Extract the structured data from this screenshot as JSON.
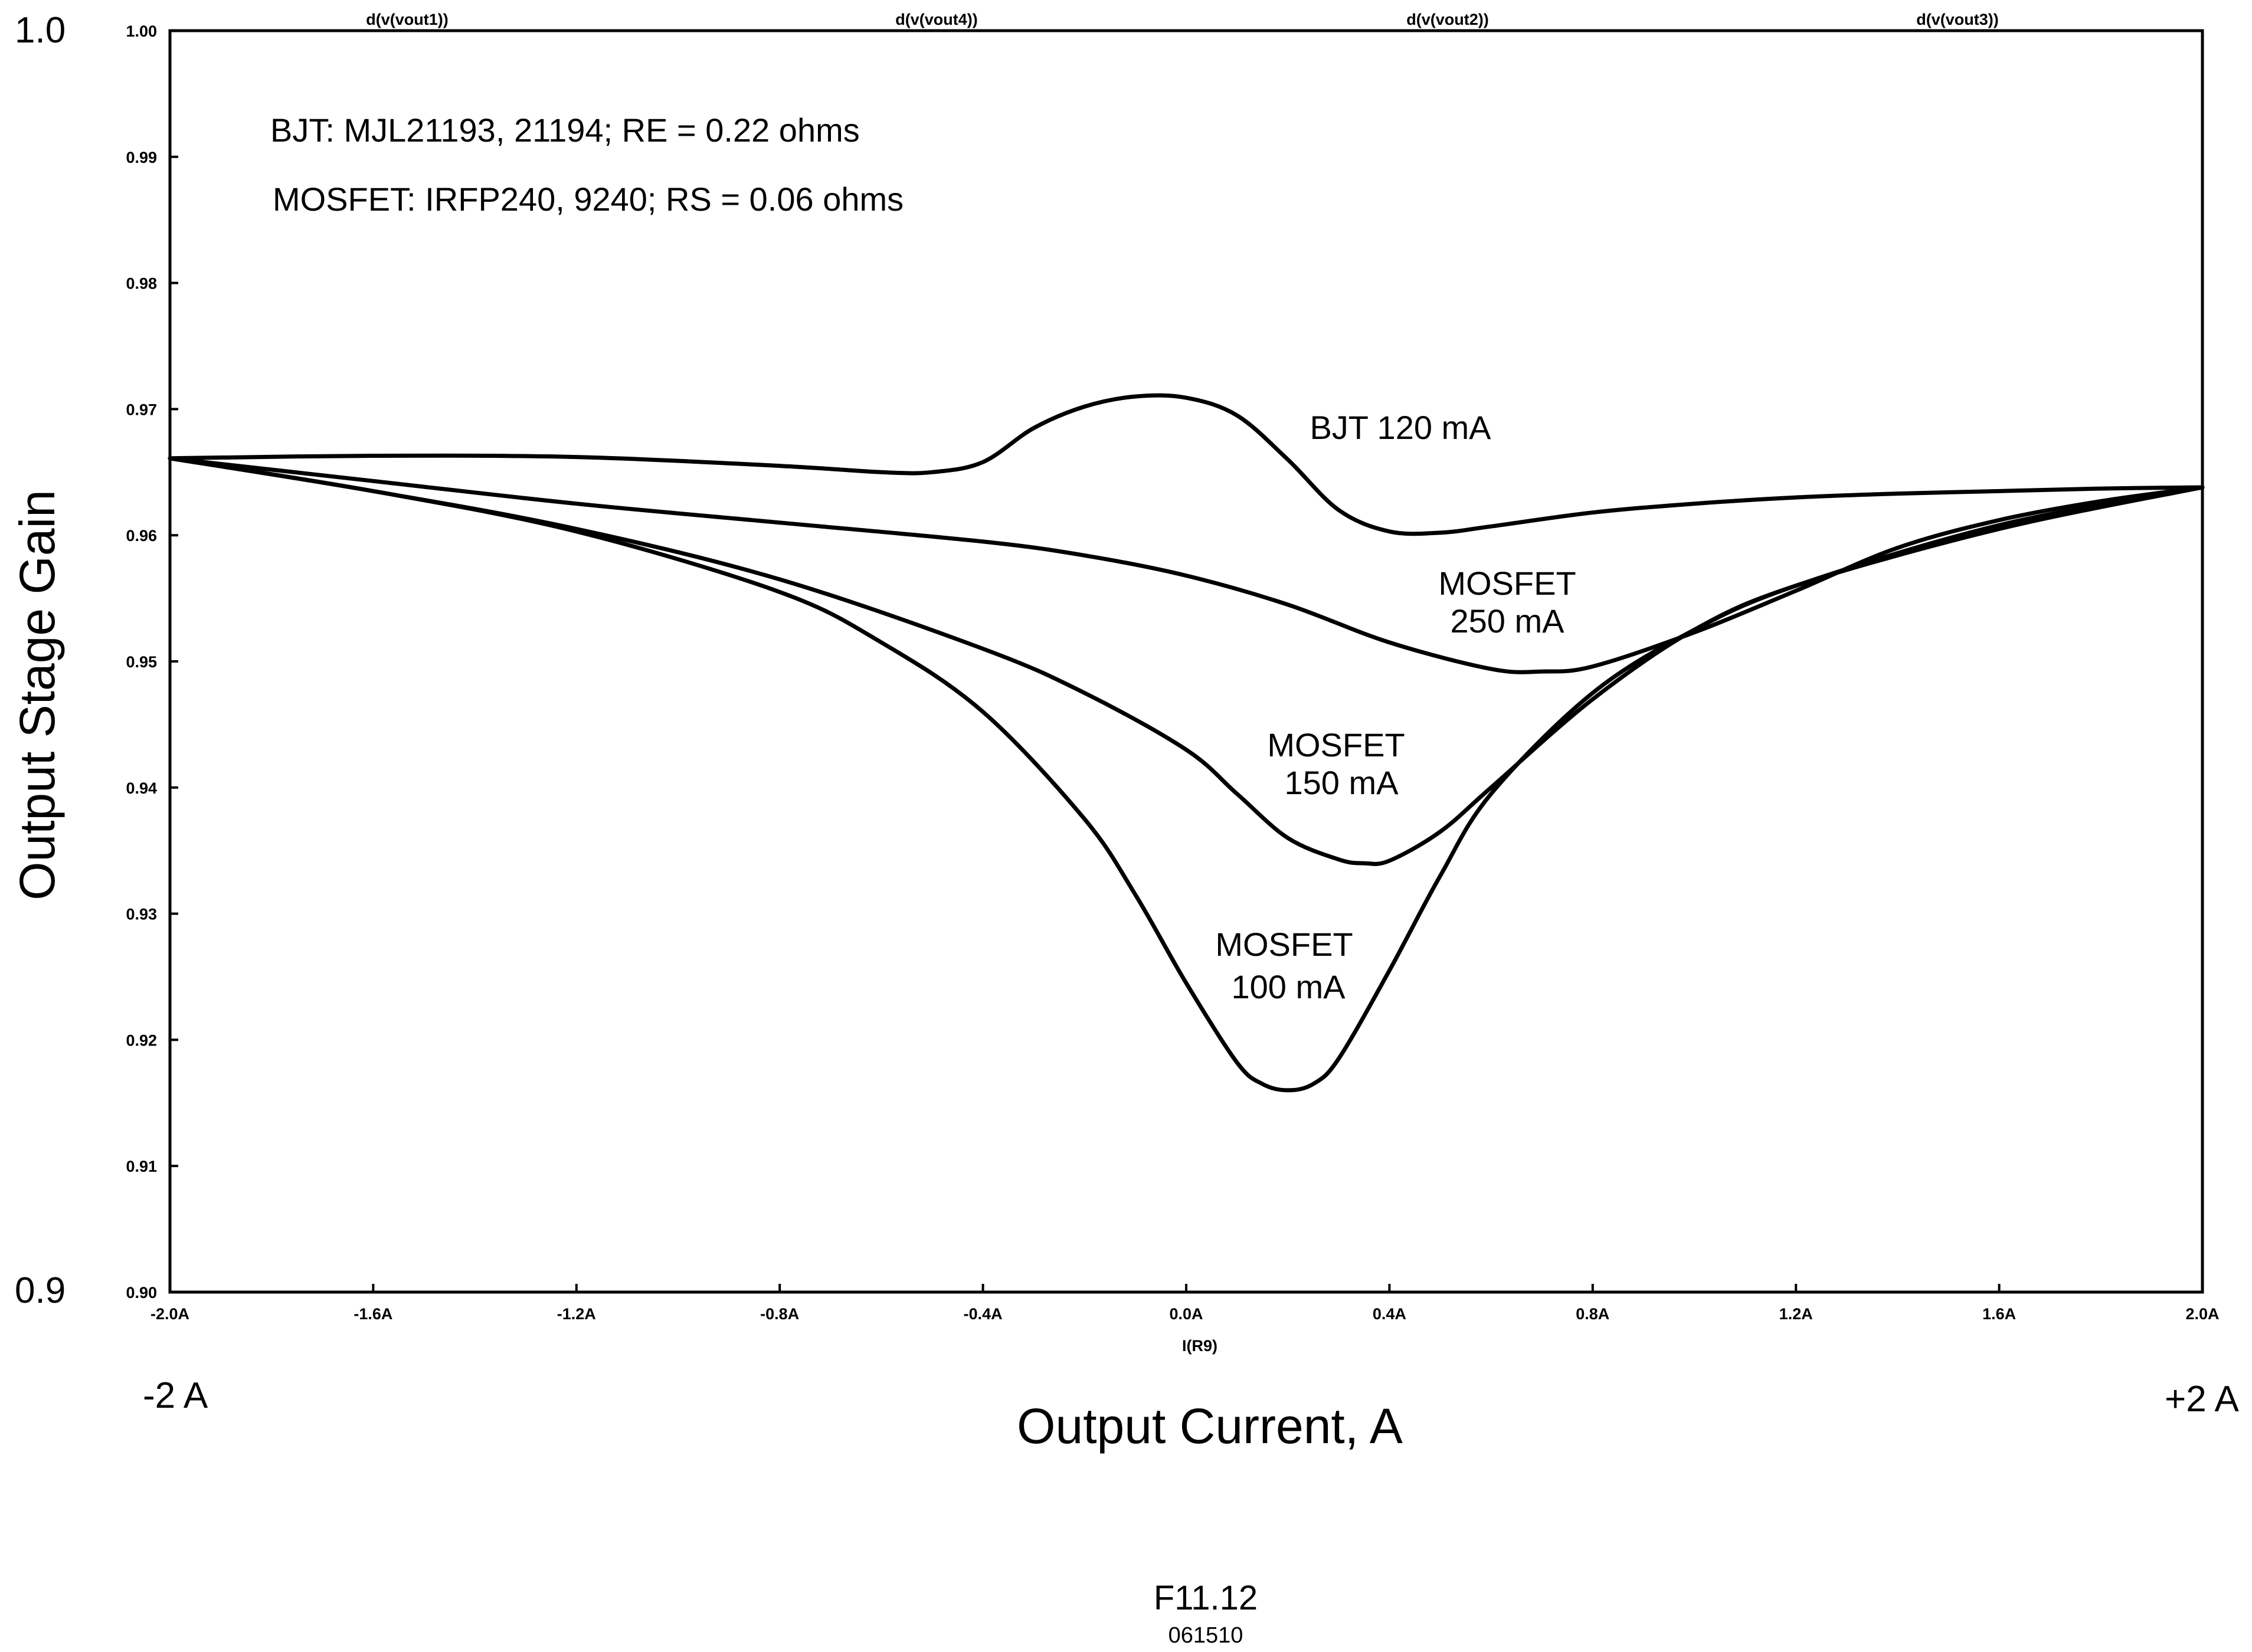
{
  "chart_data": {
    "type": "line",
    "xlabel": "Output Current, A",
    "ylabel": "Output Stage Gain",
    "x_axis_variable": "I(R9)",
    "xlim": [
      -2.0,
      2.0
    ],
    "ylim": [
      0.9,
      1.0
    ],
    "x_ticks": [
      "-2.0A",
      "-1.6A",
      "-1.2A",
      "-0.8A",
      "-0.4A",
      "0.0A",
      "0.4A",
      "0.8A",
      "1.2A",
      "1.6A",
      "2.0A"
    ],
    "y_ticks": [
      "1.00",
      "0.99",
      "0.98",
      "0.97",
      "0.96",
      "0.95",
      "0.94",
      "0.93",
      "0.92",
      "0.91",
      "0.90"
    ],
    "x_end_labels": {
      "left": "-2 A",
      "right": "+2 A"
    },
    "y_end_labels": {
      "top": "1.0",
      "bottom": "0.9"
    },
    "top_trace_labels": [
      "d(v(vout1))",
      "d(v(vout4))",
      "d(v(vout2))",
      "d(v(vout3))"
    ],
    "info_lines": [
      "BJT:  MJL21193, 21194;  RE = 0.22 ohms",
      "MOSFET:  IRFP240, 9240;  RS = 0.06 ohms"
    ],
    "series": [
      {
        "name": "BJT 120 mA",
        "label_lines": [
          "BJT 120 mA"
        ],
        "x": [
          -2.0,
          -1.6,
          -1.2,
          -0.8,
          -0.6,
          -0.5,
          -0.4,
          -0.3,
          -0.2,
          -0.1,
          0.0,
          0.1,
          0.2,
          0.3,
          0.4,
          0.5,
          0.6,
          0.8,
          1.0,
          1.2,
          1.4,
          1.6,
          1.8,
          2.0
        ],
        "y": [
          0.9661,
          0.9663,
          0.9662,
          0.9655,
          0.965,
          0.965,
          0.9658,
          0.9685,
          0.9702,
          0.971,
          0.9709,
          0.9695,
          0.966,
          0.962,
          0.9603,
          0.9602,
          0.9607,
          0.9618,
          0.9625,
          0.963,
          0.9633,
          0.9635,
          0.9637,
          0.9638
        ]
      },
      {
        "name": "MOSFET 250 mA",
        "label_lines": [
          "MOSFET",
          "250 mA"
        ],
        "x": [
          -2.0,
          -1.6,
          -1.2,
          -0.8,
          -0.4,
          -0.2,
          0.0,
          0.2,
          0.4,
          0.6,
          0.7,
          0.8,
          1.0,
          1.2,
          1.4,
          1.6,
          1.8,
          2.0
        ],
        "y": [
          0.9661,
          0.9643,
          0.9625,
          0.961,
          0.9595,
          0.9584,
          0.9568,
          0.9545,
          0.9515,
          0.9494,
          0.9492,
          0.9496,
          0.9523,
          0.9556,
          0.959,
          0.9612,
          0.9627,
          0.9638
        ]
      },
      {
        "name": "MOSFET 150 mA",
        "label_lines": [
          "MOSFET",
          "150 mA"
        ],
        "x": [
          -2.0,
          -1.6,
          -1.2,
          -0.8,
          -0.4,
          -0.2,
          0.0,
          0.1,
          0.2,
          0.3,
          0.35,
          0.4,
          0.5,
          0.6,
          0.8,
          1.0,
          1.2,
          1.6,
          2.0
        ],
        "y": [
          0.9661,
          0.9635,
          0.9605,
          0.9565,
          0.951,
          0.9475,
          0.943,
          0.9395,
          0.936,
          0.9343,
          0.934,
          0.9342,
          0.9365,
          0.94,
          0.947,
          0.9525,
          0.956,
          0.9605,
          0.9638
        ]
      },
      {
        "name": "MOSFET 100 mA",
        "label_lines": [
          "MOSFET",
          "100 mA"
        ],
        "x": [
          -2.0,
          -1.6,
          -1.2,
          -0.8,
          -0.6,
          -0.4,
          -0.2,
          -0.1,
          0.0,
          0.1,
          0.15,
          0.2,
          0.25,
          0.3,
          0.4,
          0.5,
          0.6,
          0.8,
          1.0,
          1.2,
          1.6,
          2.0
        ],
        "y": [
          0.9661,
          0.9635,
          0.9603,
          0.9555,
          0.9515,
          0.946,
          0.9375,
          0.9315,
          0.9245,
          0.9182,
          0.9165,
          0.916,
          0.9165,
          0.9185,
          0.9255,
          0.933,
          0.9395,
          0.9475,
          0.9525,
          0.956,
          0.9608,
          0.9638
        ]
      }
    ],
    "grid": false,
    "legend": "none",
    "line_color": "#000000"
  },
  "footer": {
    "figure_id": "F11.12",
    "code": "061510"
  }
}
